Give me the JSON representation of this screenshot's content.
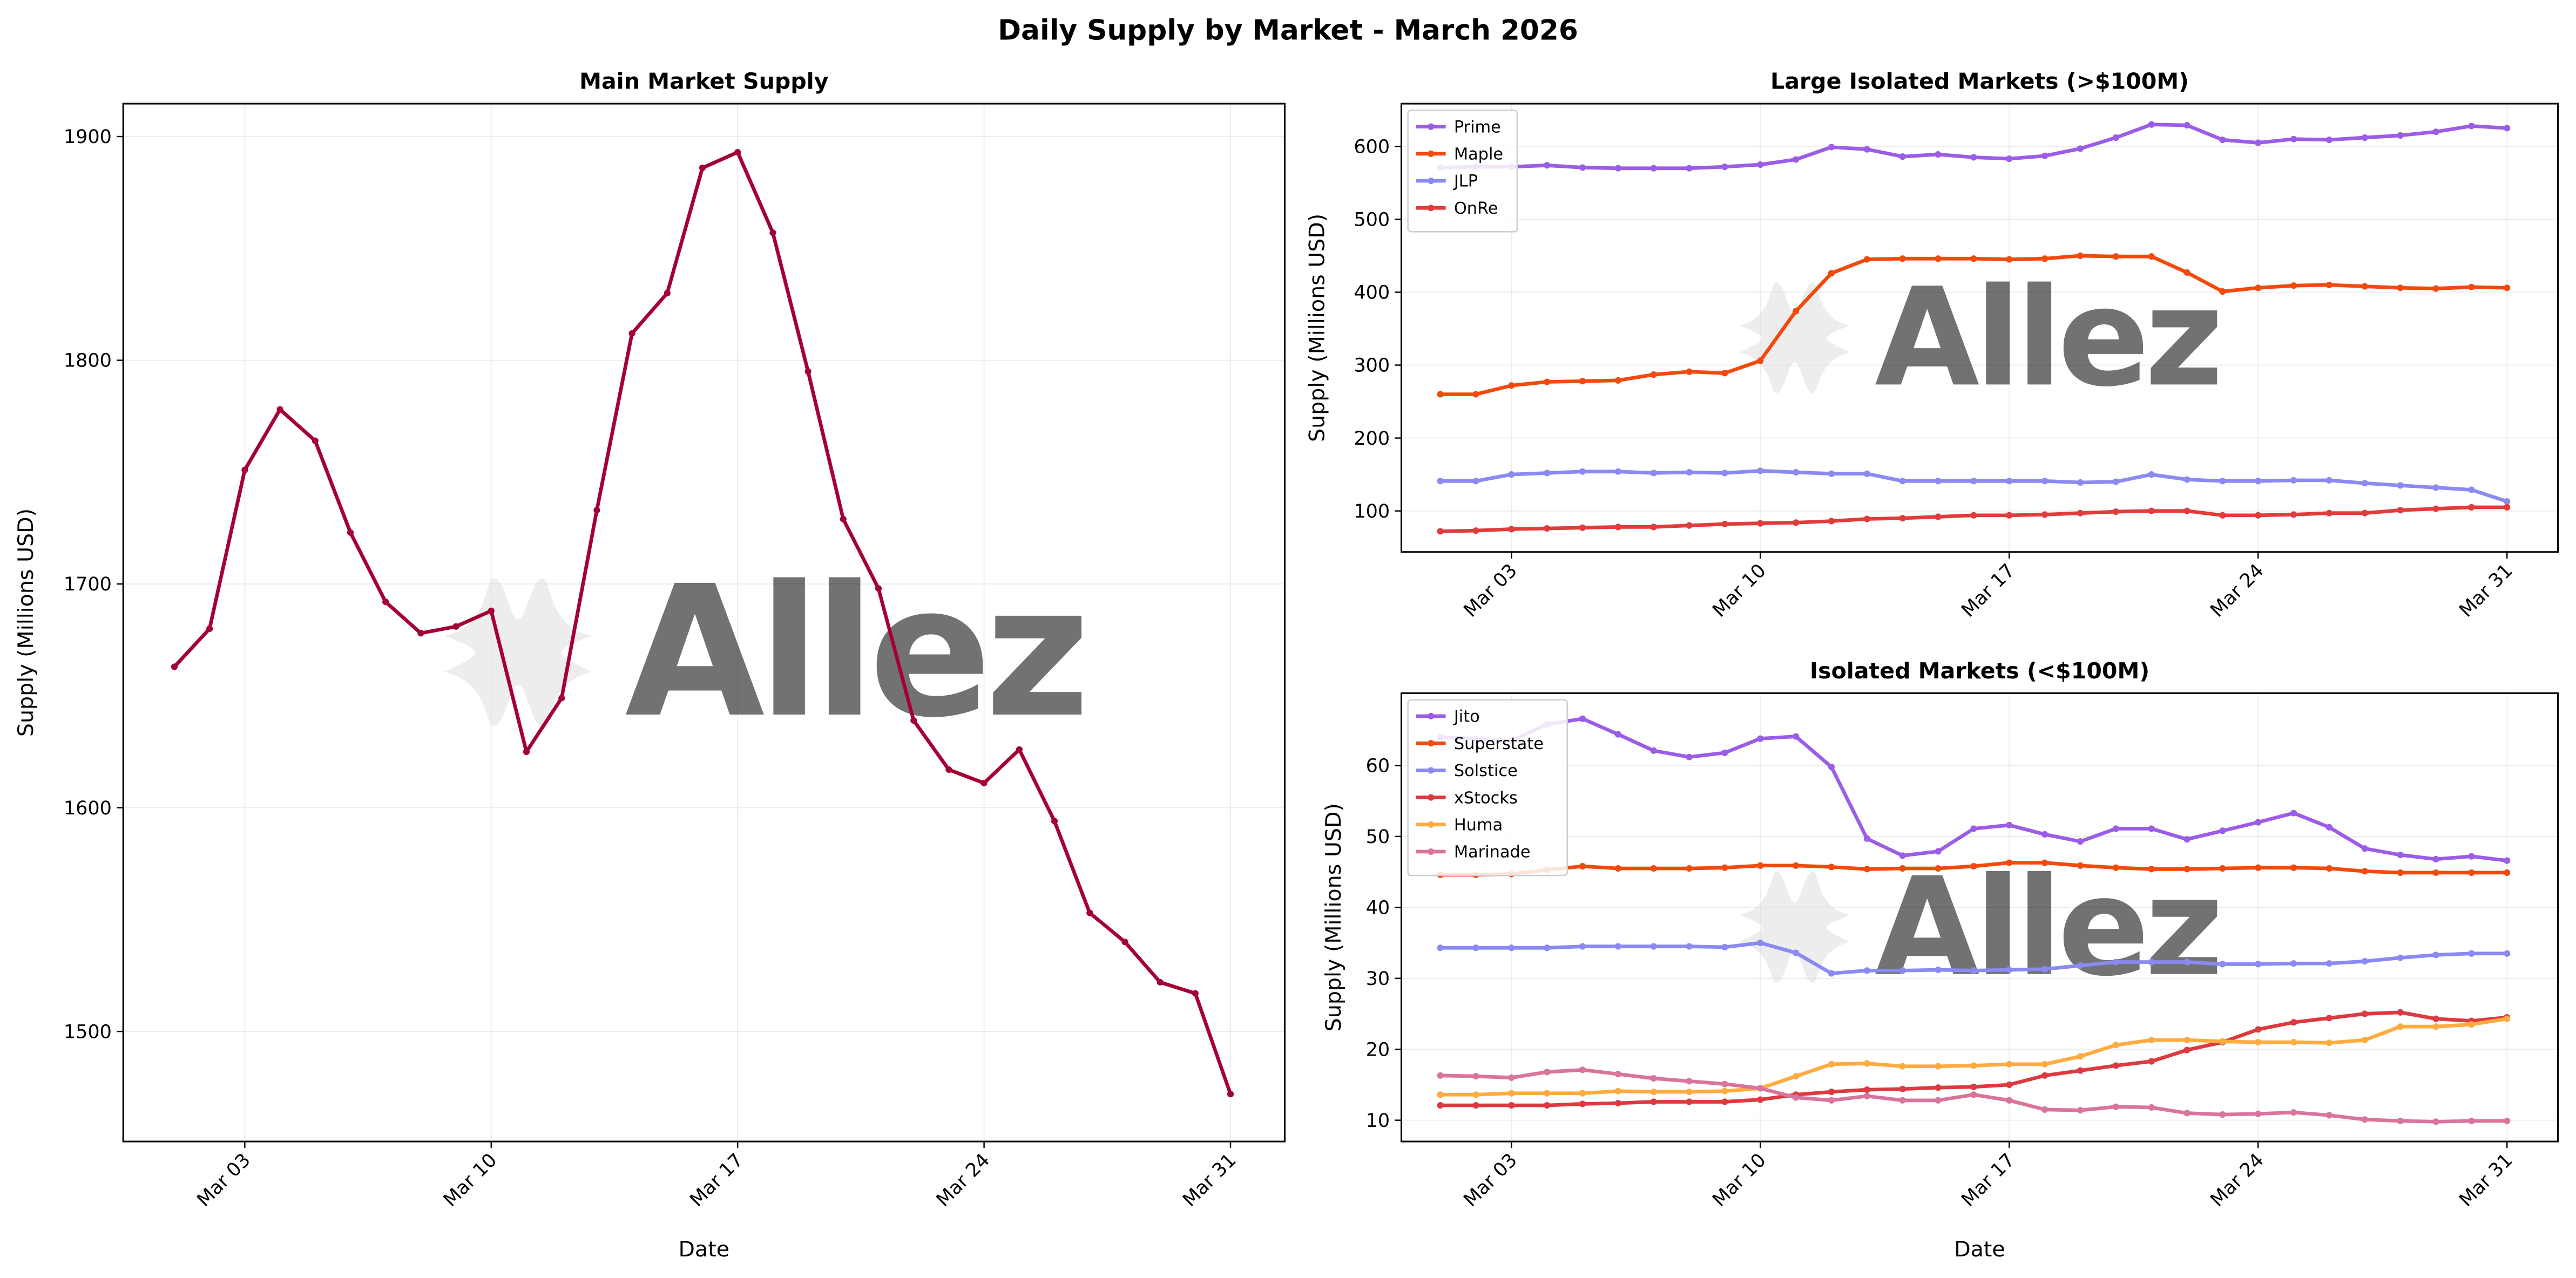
{
  "suptitle": "Daily Supply by Market - March 2026",
  "watermark": "Allez",
  "chart_data": [
    {
      "id": "main",
      "type": "line",
      "title": "Main Market Supply",
      "xlabel": "Date",
      "ylabel": "Supply (Millions USD)",
      "x_days": [
        1,
        2,
        3,
        4,
        5,
        6,
        7,
        8,
        9,
        10,
        11,
        12,
        13,
        14,
        15,
        16,
        17,
        18,
        19,
        20,
        21,
        22,
        23,
        24,
        25,
        26,
        27,
        28,
        29,
        30,
        31
      ],
      "xticks": [
        {
          "day": 3,
          "label": "Mar 03"
        },
        {
          "day": 10,
          "label": "Mar 10"
        },
        {
          "day": 17,
          "label": "Mar 17"
        },
        {
          "day": 24,
          "label": "Mar 24"
        },
        {
          "day": 31,
          "label": "Mar 31"
        }
      ],
      "yticks": [
        1500,
        1600,
        1700,
        1800,
        1900
      ],
      "ylim": [
        1450.8,
        1914.7
      ],
      "grid": true,
      "legend": null,
      "series": [
        {
          "name": "Main Market",
          "color": "#a50034",
          "values": [
            1663,
            1680,
            1751,
            1778,
            1764,
            1723,
            1692,
            1678,
            1681,
            1688,
            1625,
            1649,
            1733,
            1812,
            1830,
            1886,
            1893,
            1857,
            1795,
            1729,
            1698,
            1639,
            1617,
            1611,
            1626,
            1594,
            1553,
            1540,
            1522,
            1517,
            1472
          ]
        }
      ]
    },
    {
      "id": "large",
      "type": "line",
      "title": "Large Isolated Markets (>$100M)",
      "xlabel": "",
      "ylabel": "Supply (Millions USD)",
      "x_days": [
        1,
        2,
        3,
        4,
        5,
        6,
        7,
        8,
        9,
        10,
        11,
        12,
        13,
        14,
        15,
        16,
        17,
        18,
        19,
        20,
        21,
        22,
        23,
        24,
        25,
        26,
        27,
        28,
        29,
        30,
        31
      ],
      "xticks": [
        {
          "day": 3,
          "label": "Mar 03"
        },
        {
          "day": 10,
          "label": "Mar 10"
        },
        {
          "day": 17,
          "label": "Mar 17"
        },
        {
          "day": 24,
          "label": "Mar 24"
        },
        {
          "day": 31,
          "label": "Mar 31"
        }
      ],
      "yticks": [
        100,
        200,
        300,
        400,
        500,
        600
      ],
      "ylim": [
        43.7,
        658.6
      ],
      "grid": true,
      "legend": "top-left",
      "series": [
        {
          "name": "Prime",
          "color": "#9b5de5",
          "values": [
            571,
            572,
            572,
            574,
            571,
            570,
            570,
            570,
            572,
            575,
            582,
            599,
            596,
            586,
            589,
            585,
            583,
            587,
            597,
            612,
            630,
            629,
            609,
            605,
            610,
            609,
            612,
            615,
            620,
            628,
            625
          ]
        },
        {
          "name": "Maple",
          "color": "#f24a0c",
          "values": [
            260,
            260,
            272,
            277,
            278,
            279,
            287,
            291,
            289,
            306,
            374,
            426,
            445,
            446,
            446,
            446,
            445,
            446,
            450,
            449,
            449,
            427,
            401,
            406,
            409,
            410,
            408,
            406,
            405,
            407,
            406
          ]
        },
        {
          "name": "JLP",
          "color": "#8a8af2",
          "values": [
            141,
            141,
            150,
            152,
            154,
            154,
            152,
            153,
            152,
            155,
            153,
            151,
            151,
            141,
            141,
            141,
            141,
            141,
            139,
            140,
            150,
            143,
            141,
            141,
            142,
            142,
            138,
            135,
            132,
            129,
            113
          ]
        },
        {
          "name": "OnRe",
          "color": "#e03c3c",
          "values": [
            72,
            73,
            75,
            76,
            77,
            78,
            78,
            80,
            82,
            83,
            84,
            86,
            89,
            90,
            92,
            94,
            94,
            95,
            97,
            99,
            100,
            100,
            94,
            94,
            95,
            97,
            97,
            101,
            103,
            105,
            105
          ]
        }
      ]
    },
    {
      "id": "small",
      "type": "line",
      "title": "Isolated Markets (<$100M)",
      "xlabel": "Date",
      "ylabel": "Supply (Millions USD)",
      "x_days": [
        1,
        2,
        3,
        4,
        5,
        6,
        7,
        8,
        9,
        10,
        11,
        12,
        13,
        14,
        15,
        16,
        17,
        18,
        19,
        20,
        21,
        22,
        23,
        24,
        25,
        26,
        27,
        28,
        29,
        30,
        31
      ],
      "xticks": [
        {
          "day": 3,
          "label": "Mar 03"
        },
        {
          "day": 10,
          "label": "Mar 10"
        },
        {
          "day": 17,
          "label": "Mar 17"
        },
        {
          "day": 24,
          "label": "Mar 24"
        },
        {
          "day": 31,
          "label": "Mar 31"
        }
      ],
      "yticks": [
        10,
        20,
        30,
        40,
        50,
        60
      ],
      "ylim": [
        7.0,
        70.2
      ],
      "grid": true,
      "legend": "top-left",
      "series": [
        {
          "name": "Jito",
          "color": "#9b5de5",
          "values": [
            64.0,
            63.8,
            63.5,
            65.8,
            66.6,
            64.4,
            62.1,
            61.2,
            61.8,
            63.8,
            64.1,
            59.8,
            49.7,
            47.3,
            47.9,
            51.1,
            51.6,
            50.3,
            49.3,
            51.1,
            51.1,
            49.6,
            50.8,
            52.0,
            53.3,
            51.3,
            48.3,
            47.4,
            46.8,
            47.2,
            46.6
          ]
        },
        {
          "name": "Superstate",
          "color": "#f24a0c",
          "values": [
            44.6,
            44.6,
            44.7,
            45.3,
            45.8,
            45.5,
            45.5,
            45.5,
            45.6,
            45.9,
            45.9,
            45.7,
            45.4,
            45.5,
            45.5,
            45.8,
            46.3,
            46.3,
            45.9,
            45.6,
            45.4,
            45.4,
            45.5,
            45.6,
            45.6,
            45.5,
            45.1,
            44.9,
            44.9,
            44.9,
            44.9
          ]
        },
        {
          "name": "Solstice",
          "color": "#8a8af2",
          "values": [
            34.3,
            34.3,
            34.3,
            34.3,
            34.5,
            34.5,
            34.5,
            34.5,
            34.4,
            35.0,
            33.6,
            30.7,
            31.1,
            31.1,
            31.2,
            31.1,
            31.2,
            31.3,
            31.8,
            32.3,
            32.3,
            32.3,
            32.0,
            32.0,
            32.1,
            32.1,
            32.4,
            32.9,
            33.3,
            33.5,
            33.5
          ]
        },
        {
          "name": "xStocks",
          "color": "#dc3a40",
          "values": [
            12.1,
            12.1,
            12.1,
            12.1,
            12.3,
            12.4,
            12.6,
            12.6,
            12.6,
            12.9,
            13.6,
            14.0,
            14.3,
            14.4,
            14.6,
            14.7,
            15.0,
            16.3,
            17.0,
            17.7,
            18.3,
            19.9,
            21.0,
            22.8,
            23.8,
            24.4,
            25.0,
            25.2,
            24.3,
            24.0,
            24.5
          ]
        },
        {
          "name": "Huma",
          "color": "#ffab40",
          "values": [
            13.6,
            13.6,
            13.8,
            13.8,
            13.8,
            14.1,
            14.0,
            14.0,
            14.1,
            14.5,
            16.2,
            17.9,
            18.0,
            17.6,
            17.6,
            17.7,
            17.9,
            17.9,
            19.0,
            20.6,
            21.3,
            21.3,
            21.1,
            21.0,
            21.0,
            20.9,
            21.3,
            23.2,
            23.2,
            23.5,
            24.3
          ]
        },
        {
          "name": "Marinade",
          "color": "#d9749c",
          "values": [
            16.3,
            16.2,
            16.0,
            16.8,
            17.1,
            16.5,
            15.9,
            15.5,
            15.1,
            14.5,
            13.2,
            12.8,
            13.4,
            12.8,
            12.8,
            13.6,
            12.8,
            11.5,
            11.4,
            11.9,
            11.8,
            11.0,
            10.8,
            10.9,
            11.1,
            10.7,
            10.1,
            9.9,
            9.8,
            9.9,
            9.9
          ]
        }
      ]
    }
  ]
}
